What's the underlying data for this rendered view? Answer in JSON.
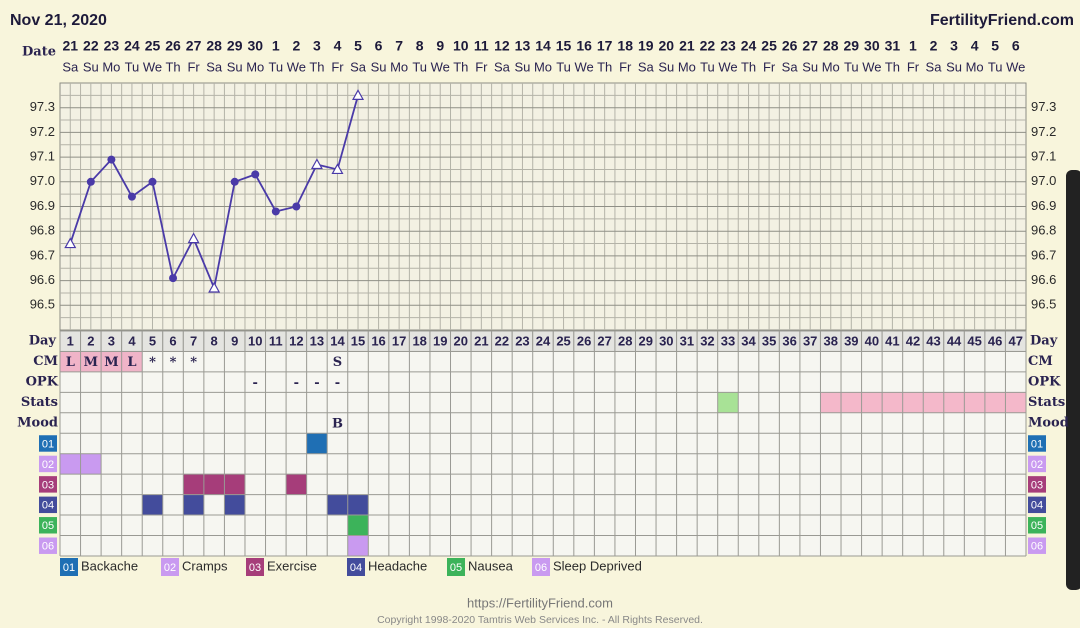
{
  "header": {
    "date": "Nov 21, 2020",
    "brand": "FertilityFriend.com"
  },
  "chart_data": {
    "type": "line",
    "date_label": "Date",
    "day_label": "Day",
    "categories": [
      21,
      22,
      23,
      24,
      25,
      26,
      27,
      28,
      29,
      30,
      1,
      2,
      3,
      4,
      5,
      6,
      7,
      8,
      9,
      10,
      11,
      12,
      13,
      14,
      15,
      16,
      17,
      18,
      19,
      20,
      21,
      22,
      23,
      24,
      25,
      26,
      27,
      28,
      29,
      30,
      31,
      1,
      2,
      3,
      4,
      5,
      6
    ],
    "weekdays": [
      "Sa",
      "Su",
      "Mo",
      "Tu",
      "We",
      "Th",
      "Fr",
      "Sa",
      "Su",
      "Mo",
      "Tu",
      "We",
      "Th",
      "Fr",
      "Sa",
      "Su",
      "Mo",
      "Tu",
      "We",
      "Th",
      "Fr",
      "Sa",
      "Su",
      "Mo",
      "Tu",
      "We",
      "Th",
      "Fr",
      "Sa",
      "Su",
      "Mo",
      "Tu",
      "We",
      "Th",
      "Fr",
      "Sa",
      "Su",
      "Mo",
      "Tu",
      "We",
      "Th",
      "Fr",
      "Sa",
      "Su",
      "Mo",
      "Tu",
      "We"
    ],
    "days": [
      1,
      2,
      3,
      4,
      5,
      6,
      7,
      8,
      9,
      10,
      11,
      12,
      13,
      14,
      15,
      16,
      17,
      18,
      19,
      20,
      21,
      22,
      23,
      24,
      25,
      26,
      27,
      28,
      29,
      30,
      31,
      32,
      33,
      34,
      35,
      36,
      37,
      38,
      39,
      40,
      41,
      42,
      43,
      44,
      45,
      46,
      47
    ],
    "series": [
      {
        "color": "#4a3aa8",
        "values": [
          96.75,
          97.0,
          97.09,
          96.94,
          97.0,
          96.61,
          96.77,
          96.57,
          97.0,
          97.03,
          96.88,
          96.9,
          97.07,
          97.05,
          97.35,
          null,
          null,
          null,
          null,
          null,
          null,
          null,
          null,
          null,
          null,
          null,
          null,
          null,
          null,
          null,
          null,
          null,
          null,
          null,
          null,
          null,
          null,
          null,
          null,
          null,
          null,
          null,
          null,
          null,
          null,
          null,
          null
        ],
        "markers": [
          "triangle",
          "circle",
          "circle",
          "circle",
          "circle",
          "circle",
          "triangle",
          "triangle",
          "circle",
          "circle",
          "circle",
          "circle",
          "triangle",
          "triangle",
          "triangle",
          null,
          null,
          null,
          null,
          null,
          null,
          null,
          null,
          null,
          null,
          null,
          null,
          null,
          null,
          null,
          null,
          null,
          null,
          null,
          null,
          null,
          null,
          null,
          null,
          null,
          null,
          null,
          null,
          null,
          null,
          null,
          null
        ]
      }
    ],
    "ylim": [
      96.4,
      97.4
    ],
    "yticks": [
      96.5,
      96.6,
      96.7,
      96.8,
      96.9,
      {
        "value": 97,
        "label": "97.0"
      },
      97.1,
      97.2,
      97.3
    ],
    "yminor": [
      96.45,
      96.55,
      96.65,
      96.75,
      96.85,
      96.95,
      97.05,
      97.15,
      97.25,
      97.35
    ],
    "grid": true,
    "rows": [
      {
        "label": "CM",
        "entries": [
          {
            "day": 1,
            "text": "L",
            "color": "#f0b4c8"
          },
          {
            "day": 2,
            "text": "M",
            "color": "#f0b4c8"
          },
          {
            "day": 3,
            "text": "M",
            "color": "#f0b4c8"
          },
          {
            "day": 4,
            "text": "L",
            "color": "#f0b4c8"
          },
          {
            "day": 5,
            "text": "*"
          },
          {
            "day": 6,
            "text": "*"
          },
          {
            "day": 7,
            "text": "*"
          },
          {
            "day": 14,
            "text": "S"
          }
        ]
      },
      {
        "label": "OPK",
        "entries": [
          {
            "day": 10,
            "text": "-"
          },
          {
            "day": 12,
            "text": "-"
          },
          {
            "day": 13,
            "text": "-"
          },
          {
            "day": 14,
            "text": "-"
          }
        ]
      },
      {
        "label": "Stats",
        "entries": [
          {
            "day": 33,
            "color": "#a8e296"
          },
          {
            "day": 38,
            "color": "#f4b8ca"
          },
          {
            "day": 39,
            "color": "#f4b8ca"
          },
          {
            "day": 40,
            "color": "#f4b8ca"
          },
          {
            "day": 41,
            "color": "#f4b8ca"
          },
          {
            "day": 42,
            "color": "#f4b8ca"
          },
          {
            "day": 43,
            "color": "#f4b8ca"
          },
          {
            "day": 44,
            "color": "#f4b8ca"
          },
          {
            "day": 45,
            "color": "#f4b8ca"
          },
          {
            "day": 46,
            "color": "#f4b8ca"
          },
          {
            "day": 47,
            "color": "#f4b8ca"
          }
        ]
      },
      {
        "label": "Mood",
        "entries": [
          {
            "day": 14,
            "text": "B"
          }
        ]
      }
    ],
    "symptoms": [
      {
        "code": "01",
        "name": "Backache",
        "color": "#1f6fb4",
        "days": [
          13
        ]
      },
      {
        "code": "02",
        "name": "Cramps",
        "color": "#c99af0",
        "days": [
          1,
          2
        ]
      },
      {
        "code": "03",
        "name": "Exercise",
        "color": "#a63d7a",
        "days": [
          7,
          8,
          9,
          12
        ]
      },
      {
        "code": "04",
        "name": "Headache",
        "color": "#434c9c",
        "days": [
          5,
          7,
          9,
          14,
          15
        ]
      },
      {
        "code": "05",
        "name": "Nausea",
        "color": "#3cb35a",
        "days": [
          15
        ]
      },
      {
        "code": "06",
        "name": "Sleep Deprived",
        "color": "#c99af0",
        "days": [
          15
        ]
      }
    ]
  },
  "footer": {
    "url": "https://FertilityFriend.com",
    "copyright": "Copyright 1998-2020 Tamtris Web Services Inc. - All Rights Reserved."
  }
}
